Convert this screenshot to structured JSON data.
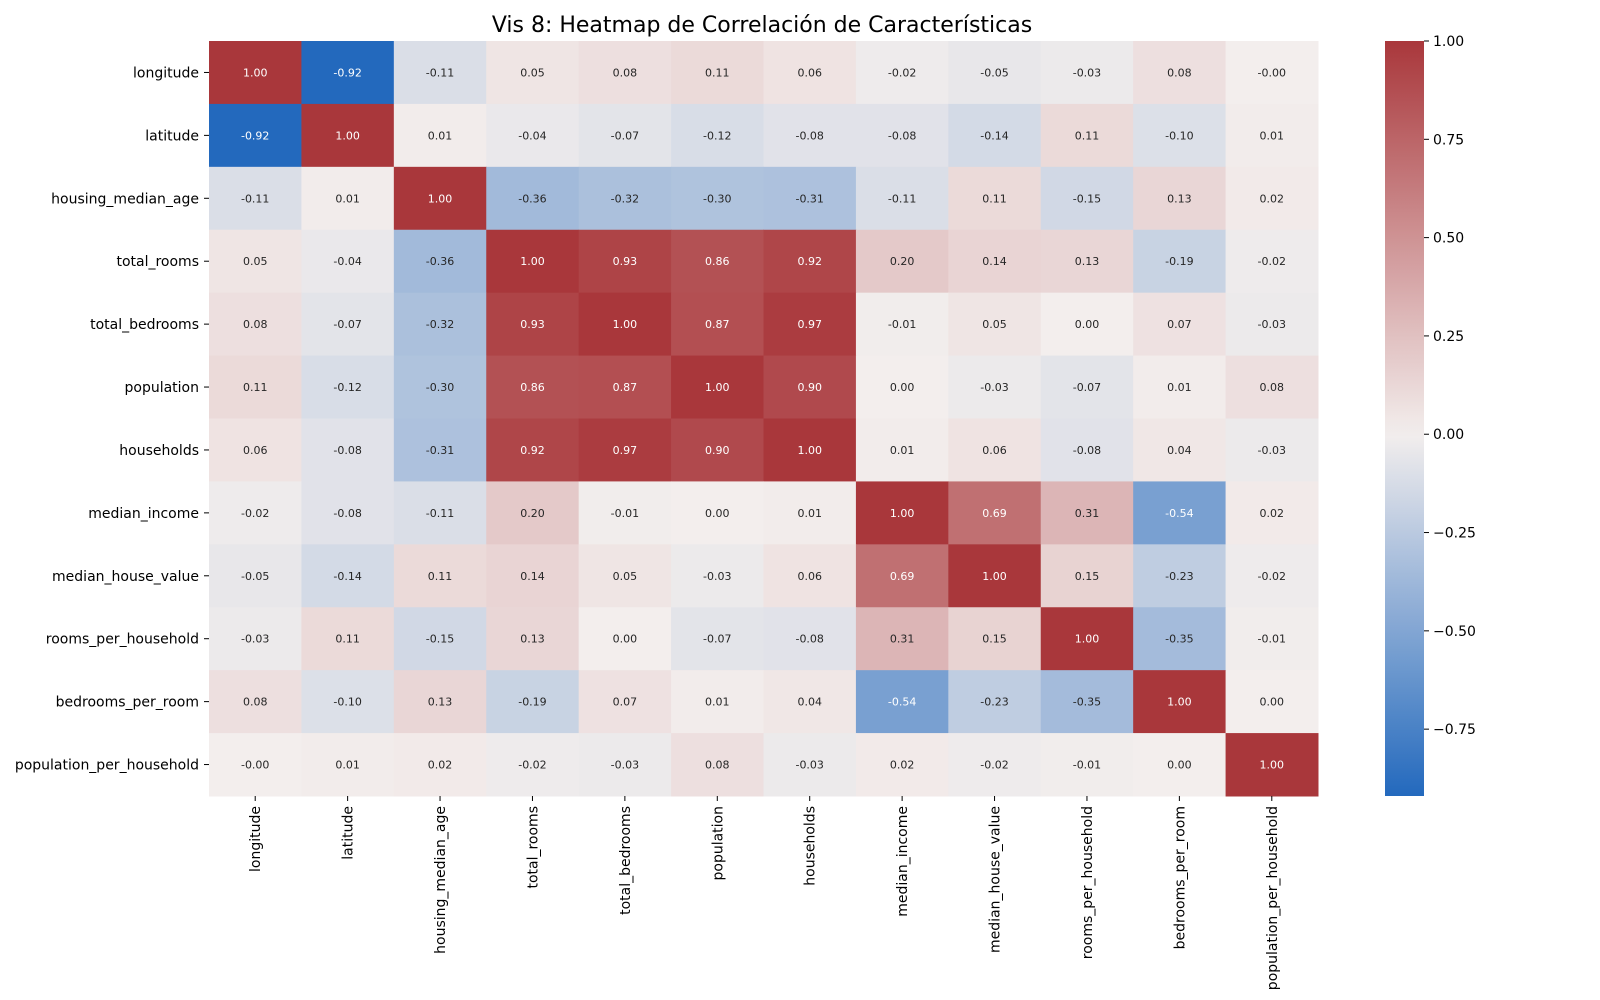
{
  "chart_data": {
    "type": "heatmap",
    "title": "Vis 8: Heatmap de Correlación de Características",
    "xlabel": "",
    "ylabel": "",
    "variables": [
      "longitude",
      "latitude",
      "housing_median_age",
      "total_rooms",
      "total_bedrooms",
      "population",
      "households",
      "median_income",
      "median_house_value",
      "rooms_per_household",
      "bedrooms_per_room",
      "population_per_household"
    ],
    "values": [
      [
        1.0,
        -0.92,
        -0.11,
        0.05,
        0.08,
        0.11,
        0.06,
        -0.02,
        -0.05,
        -0.03,
        0.08,
        -0.0
      ],
      [
        -0.92,
        1.0,
        0.01,
        -0.04,
        -0.07,
        -0.12,
        -0.08,
        -0.08,
        -0.14,
        0.11,
        -0.1,
        0.01
      ],
      [
        -0.11,
        0.01,
        1.0,
        -0.36,
        -0.32,
        -0.3,
        -0.31,
        -0.11,
        0.11,
        -0.15,
        0.13,
        0.02
      ],
      [
        0.05,
        -0.04,
        -0.36,
        1.0,
        0.93,
        0.86,
        0.92,
        0.2,
        0.14,
        0.13,
        -0.19,
        -0.02
      ],
      [
        0.08,
        -0.07,
        -0.32,
        0.93,
        1.0,
        0.87,
        0.97,
        -0.01,
        0.05,
        0.0,
        0.07,
        -0.03
      ],
      [
        0.11,
        -0.12,
        -0.3,
        0.86,
        0.87,
        1.0,
        0.9,
        0.0,
        -0.03,
        -0.07,
        0.01,
        0.08
      ],
      [
        0.06,
        -0.08,
        -0.31,
        0.92,
        0.97,
        0.9,
        1.0,
        0.01,
        0.06,
        -0.08,
        0.04,
        -0.03
      ],
      [
        -0.02,
        -0.08,
        -0.11,
        0.2,
        -0.01,
        0.0,
        0.01,
        1.0,
        0.69,
        0.31,
        -0.54,
        0.02
      ],
      [
        -0.05,
        -0.14,
        0.11,
        0.14,
        0.05,
        -0.03,
        0.06,
        0.69,
        1.0,
        0.15,
        -0.23,
        -0.02
      ],
      [
        -0.03,
        0.11,
        -0.15,
        0.13,
        0.0,
        -0.07,
        -0.08,
        0.31,
        0.15,
        1.0,
        -0.35,
        -0.01
      ],
      [
        0.08,
        -0.1,
        0.13,
        -0.19,
        0.07,
        0.01,
        0.04,
        -0.54,
        -0.23,
        -0.35,
        1.0,
        0.0
      ],
      [
        -0.0,
        0.01,
        0.02,
        -0.02,
        -0.03,
        0.08,
        -0.03,
        0.02,
        -0.02,
        -0.01,
        0.0,
        1.0
      ]
    ],
    "value_format": "0.00",
    "colormap": "vlag",
    "colorbar": {
      "range": [
        -0.92,
        1.0
      ],
      "ticks": [
        1.0,
        0.75,
        0.5,
        0.25,
        0.0,
        -0.25,
        -0.5,
        -0.75
      ],
      "tick_labels": [
        "1.00",
        "0.75",
        "0.50",
        "0.25",
        "0.00",
        "−0.25",
        "−0.50",
        "−0.75"
      ],
      "position": "right"
    },
    "colors": {
      "negative": "#2369bd",
      "neutral": "#f3eeed",
      "positive": "#a9373b"
    }
  }
}
